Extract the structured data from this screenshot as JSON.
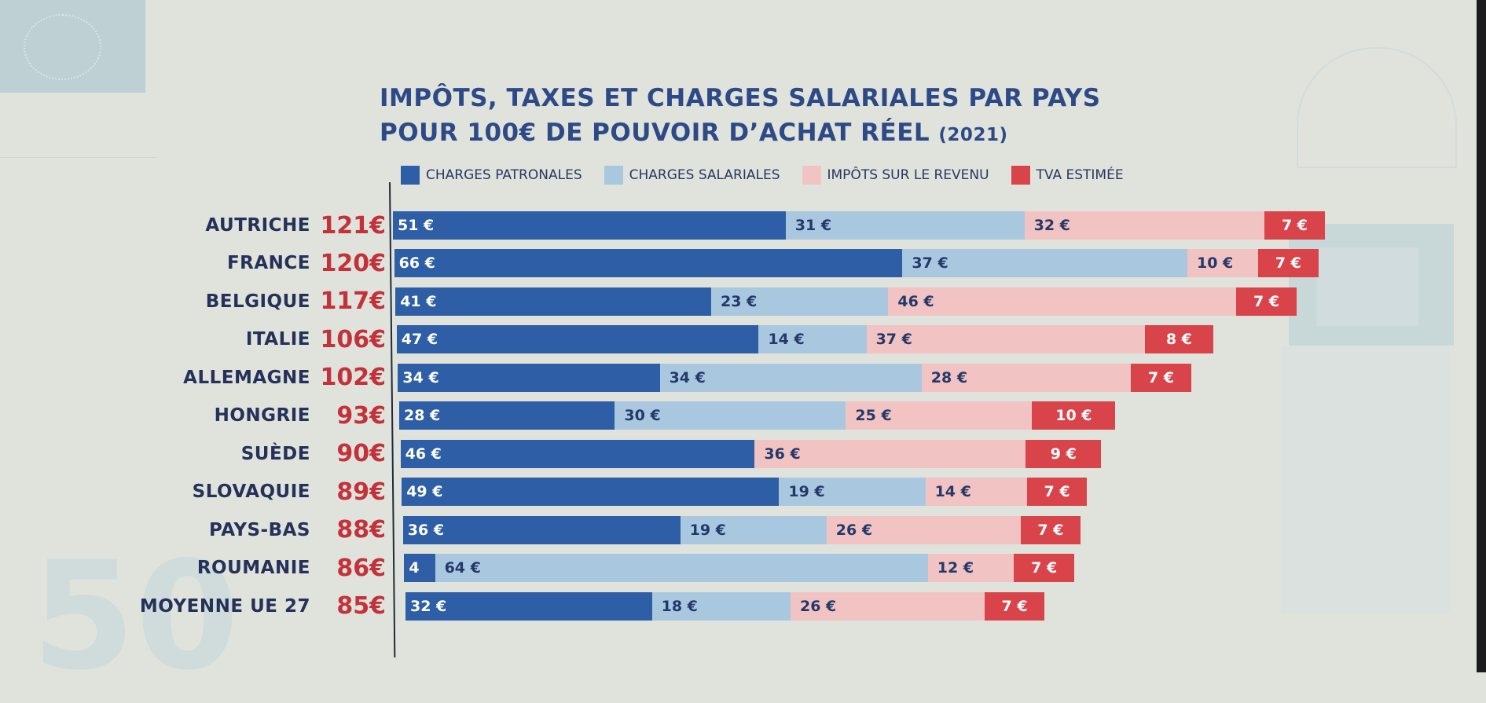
{
  "chart_data": {
    "type": "bar",
    "orientation": "horizontal",
    "stacked": true,
    "title": "IMPÔTS, TAXES ET CHARGES SALARIALES PAR PAYS",
    "subtitle": "POUR 100€ DE POUVOIR D’ACHAT RÉEL",
    "year_label": "(2021)",
    "unit": "€",
    "legend_position": "top",
    "categories": [
      "AUTRICHE",
      "FRANCE",
      "BELGIQUE",
      "ITALIE",
      "ALLEMAGNE",
      "HONGRIE",
      "SUÈDE",
      "SLOVAQUIE",
      "PAYS-BAS",
      "ROUMANIE",
      "MOYENNE UE 27"
    ],
    "totals": [
      121,
      120,
      117,
      106,
      102,
      93,
      90,
      89,
      88,
      86,
      85
    ],
    "total_labels": [
      "121€",
      "120€",
      "117€",
      "106€",
      "102€",
      "93€",
      "90€",
      "89€",
      "88€",
      "86€",
      "85€"
    ],
    "series": [
      {
        "key": "pat",
        "name": "CHARGES PATRONALES",
        "color": "#2e5ea5",
        "values": [
          51,
          66,
          41,
          47,
          34,
          28,
          46,
          49,
          36,
          4,
          32
        ]
      },
      {
        "key": "sal",
        "name": "CHARGES SALARIALES",
        "color": "#a9c8e0",
        "values": [
          31,
          37,
          23,
          14,
          34,
          30,
          0,
          19,
          19,
          64,
          18
        ]
      },
      {
        "key": "imp",
        "name": "IMPÔTS SUR LE REVENU",
        "color": "#f1c3c3",
        "values": [
          32,
          10,
          46,
          37,
          28,
          25,
          36,
          14,
          26,
          12,
          26
        ]
      },
      {
        "key": "tva",
        "name": "TVA ESTIMÉE",
        "color": "#d9434a",
        "values": [
          7,
          7,
          7,
          8,
          7,
          10,
          9,
          7,
          7,
          7,
          7
        ]
      }
    ],
    "segment_labels": {
      "pat": [
        "51 €",
        "66 €",
        "41 €",
        "47 €",
        "34 €",
        "28 €",
        "46 €",
        "49 €",
        "36 €",
        "4",
        "32 €"
      ],
      "sal": [
        "31 €",
        "37 €",
        "23 €",
        "14 €",
        "34 €",
        "30 €",
        "",
        "19 €",
        "19 €",
        "64 €",
        "18 €"
      ],
      "imp": [
        "32 €",
        "10 €",
        "46 €",
        "37 €",
        "28 €",
        "25 €",
        "36 €",
        "14 €",
        "26 €",
        "12 €",
        "26 €"
      ],
      "tva": [
        "7 €",
        "7 €",
        "7 €",
        "8 €",
        "7 €",
        "10 €",
        "9 €",
        "7 €",
        "7 €",
        "7 €",
        "7 €"
      ]
    }
  }
}
